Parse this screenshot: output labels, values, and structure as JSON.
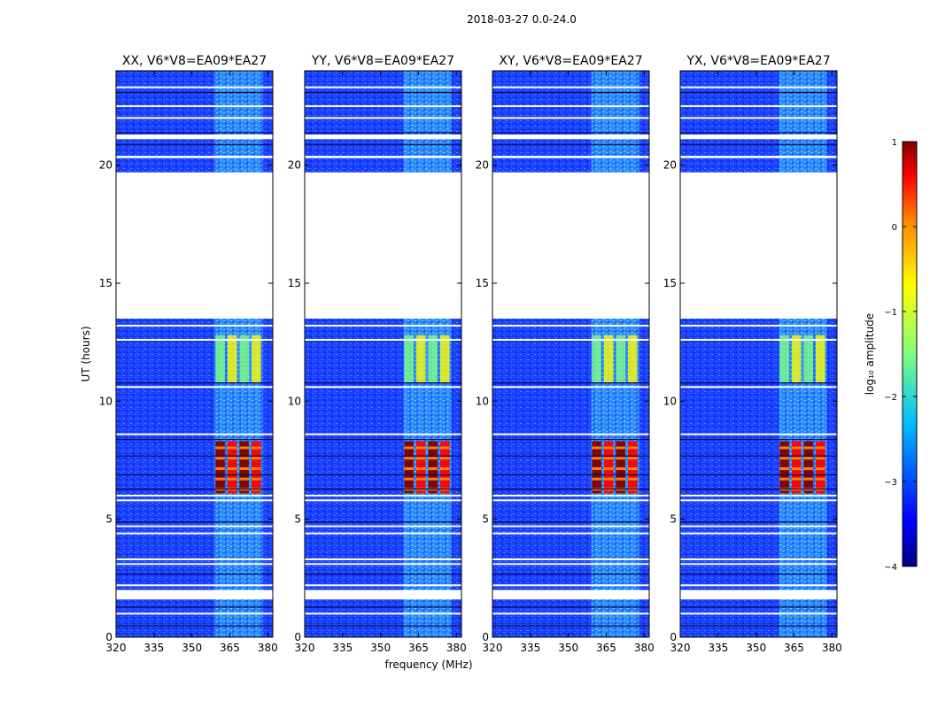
{
  "figure": {
    "suptitle": "2018-03-27 0.0-24.0",
    "xlabel": "frequency (MHz)",
    "ylabel": "UT (hours)"
  },
  "colorbar": {
    "label": "log₁₀ amplitude",
    "ticks": [
      "1",
      "0",
      "−1",
      "−2",
      "−3",
      "−4"
    ],
    "range": [
      -4,
      1
    ],
    "colormap": "jet",
    "colors": [
      "#00007f",
      "#0000ff",
      "#007fff",
      "#00ffff",
      "#7fff7f",
      "#ffff00",
      "#ff7f00",
      "#ff0000",
      "#7f0000"
    ]
  },
  "chart_data": [
    {
      "type": "heatmap",
      "title": "XX, V6*V8=EA09*EA27",
      "xlim": [
        320,
        382
      ],
      "ylim": [
        0,
        24
      ],
      "xticks": [
        320,
        335,
        350,
        365,
        380
      ],
      "yticks": [
        0,
        5,
        10,
        15,
        20
      ],
      "x_tick_labels": [
        "320",
        "335",
        "350",
        "365",
        "380"
      ],
      "y_tick_labels": [
        "0",
        "5",
        "10",
        "15",
        "20"
      ],
      "background_log_amplitude": -3.1,
      "rfi_band_MHz": [
        359,
        378
      ],
      "flagged_time_ranges_hours": [
        [
          1.6,
          2.0
        ],
        [
          13.5,
          19.7
        ],
        [
          20.3,
          20.4
        ],
        [
          21.1,
          21.3
        ]
      ],
      "strong_rfi_time_hours": [
        [
          6.1,
          8.3
        ],
        [
          10.8,
          12.8
        ]
      ],
      "strong_rfi_peak_log_amplitude": 0.7
    },
    {
      "type": "heatmap",
      "title": "YY, V6*V8=EA09*EA27",
      "xlim": [
        320,
        382
      ],
      "ylim": [
        0,
        24
      ],
      "xticks": [
        320,
        335,
        350,
        365,
        380
      ],
      "yticks": [
        0,
        5,
        10,
        15,
        20
      ],
      "x_tick_labels": [
        "320",
        "335",
        "350",
        "365",
        "380"
      ],
      "y_tick_labels": [
        "0",
        "5",
        "10",
        "15",
        "20"
      ],
      "background_log_amplitude": -3.1,
      "rfi_band_MHz": [
        359,
        378
      ],
      "flagged_time_ranges_hours": [
        [
          1.6,
          2.0
        ],
        [
          13.5,
          19.7
        ],
        [
          20.3,
          20.4
        ],
        [
          21.1,
          21.3
        ]
      ],
      "strong_rfi_time_hours": [
        [
          6.1,
          8.3
        ],
        [
          10.8,
          12.8
        ]
      ],
      "strong_rfi_peak_log_amplitude": 0.7
    },
    {
      "type": "heatmap",
      "title": "XY, V6*V8=EA09*EA27",
      "xlim": [
        320,
        382
      ],
      "ylim": [
        0,
        24
      ],
      "xticks": [
        320,
        335,
        350,
        365,
        380
      ],
      "yticks": [
        0,
        5,
        10,
        15,
        20
      ],
      "x_tick_labels": [
        "320",
        "335",
        "350",
        "365",
        "380"
      ],
      "y_tick_labels": [
        "0",
        "5",
        "10",
        "15",
        "20"
      ],
      "background_log_amplitude": -3.1,
      "rfi_band_MHz": [
        359,
        378
      ],
      "flagged_time_ranges_hours": [
        [
          1.6,
          2.0
        ],
        [
          13.5,
          19.7
        ],
        [
          20.3,
          20.4
        ],
        [
          21.1,
          21.3
        ]
      ],
      "strong_rfi_time_hours": [
        [
          6.1,
          8.3
        ],
        [
          10.8,
          12.8
        ]
      ],
      "strong_rfi_peak_log_amplitude": 0.7
    },
    {
      "type": "heatmap",
      "title": "YX, V6*V8=EA09*EA27",
      "xlim": [
        320,
        382
      ],
      "ylim": [
        0,
        24
      ],
      "xticks": [
        320,
        335,
        350,
        365,
        380
      ],
      "yticks": [
        0,
        5,
        10,
        15,
        20
      ],
      "x_tick_labels": [
        "320",
        "335",
        "350",
        "365",
        "380"
      ],
      "y_tick_labels": [
        "0",
        "5",
        "10",
        "15",
        "20"
      ],
      "background_log_amplitude": -3.1,
      "rfi_band_MHz": [
        359,
        378
      ],
      "flagged_time_ranges_hours": [
        [
          1.6,
          2.0
        ],
        [
          13.5,
          19.7
        ],
        [
          20.3,
          20.4
        ],
        [
          21.1,
          21.3
        ]
      ],
      "strong_rfi_time_hours": [
        [
          6.1,
          8.3
        ],
        [
          10.8,
          12.8
        ]
      ],
      "strong_rfi_peak_log_amplitude": 0.7
    }
  ]
}
